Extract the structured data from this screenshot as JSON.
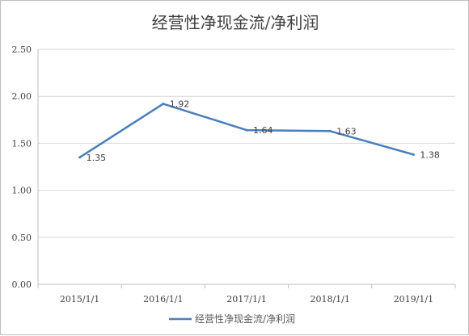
{
  "chart_data": {
    "type": "line",
    "title": "经营性净现金流/净利润",
    "categories": [
      "2015/1/1",
      "2016/1/1",
      "2017/1/1",
      "2018/1/1",
      "2019/1/1"
    ],
    "series": [
      {
        "name": "经营性净现金流/净利润",
        "values": [
          1.35,
          1.92,
          1.64,
          1.63,
          1.38
        ],
        "labels": [
          "1.35",
          "1.92",
          "1.64",
          "1.63",
          "1.38"
        ],
        "color": "#4a7ebb"
      }
    ],
    "ylim": [
      0,
      2.5
    ],
    "yticks": [
      "0.00",
      "0.50",
      "1.00",
      "1.50",
      "2.00",
      "2.50"
    ],
    "grid": true,
    "legend": "bottom",
    "colors": {
      "grid": "#d9d9d9",
      "axis": "#bfbfbf",
      "text": "#404040"
    }
  }
}
